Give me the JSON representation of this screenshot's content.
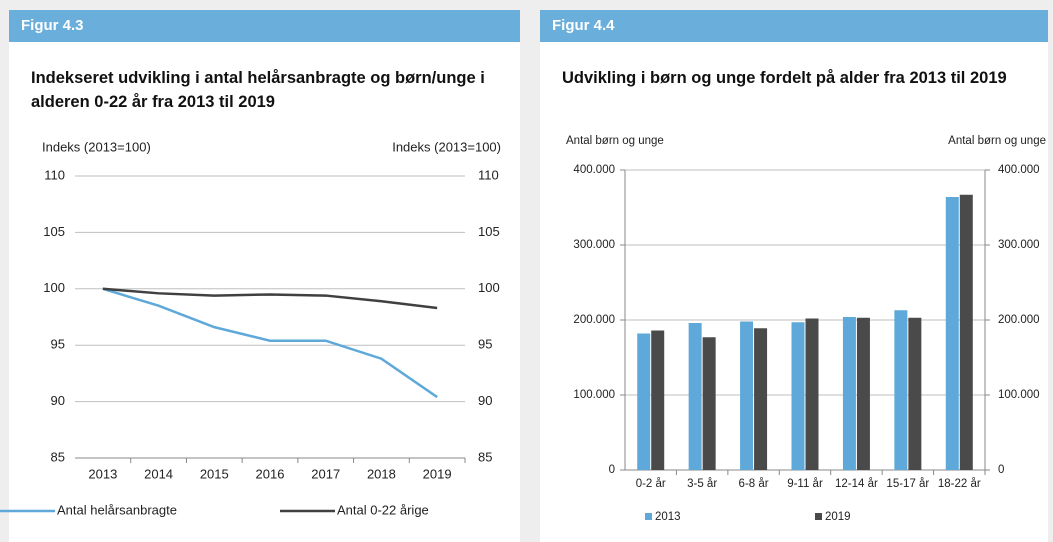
{
  "chart_data": [
    {
      "type": "line",
      "figure_label": "Figur 4.3",
      "title": "Indekseret udvikling i antal helårsanbragte og børn/unge i alderen 0-22 år fra 2013 til 2019",
      "ylabel": "Indeks (2013=100)",
      "y2label": "Indeks (2013=100)",
      "categories": [
        "2013",
        "2014",
        "2015",
        "2016",
        "2017",
        "2018",
        "2019"
      ],
      "series": [
        {
          "name": "Antal helårsanbragte",
          "color": "#5ea9da",
          "values": [
            100,
            98.5,
            96.6,
            95.4,
            95.4,
            93.8,
            90.4
          ]
        },
        {
          "name": "Antal 0-22 årige",
          "color": "#404040",
          "values": [
            100,
            99.6,
            99.4,
            99.5,
            99.4,
            98.9,
            98.3
          ]
        }
      ],
      "ylim": [
        85,
        110
      ],
      "yticks": [
        85,
        90,
        95,
        100,
        105,
        110
      ],
      "y2lim": [
        85,
        110
      ],
      "y2ticks": [
        85,
        90,
        95,
        100,
        105,
        110
      ],
      "grid": true,
      "legend": "bottom"
    },
    {
      "type": "bar",
      "figure_label": "Figur 4.4",
      "title": "Udvikling i børn og unge fordelt på alder fra 2013 til 2019",
      "ylabel": "Antal børn og unge",
      "y2label": "Antal børn og unge",
      "categories": [
        "0-2 år",
        "3-5 år",
        "6-8 år",
        "9-11 år",
        "12-14 år",
        "15-17 år",
        "18-22 år"
      ],
      "series": [
        {
          "name": "2013",
          "color": "#5ea9da",
          "values": [
            182000,
            196000,
            198000,
            197000,
            204000,
            213000,
            364000
          ]
        },
        {
          "name": "2019",
          "color": "#4a4a4a",
          "values": [
            186000,
            177000,
            189000,
            202000,
            203000,
            203000,
            367000
          ]
        }
      ],
      "ylim": [
        0,
        400000
      ],
      "yticks": [
        0,
        {
          "value": 100000,
          "label": "100.000"
        },
        {
          "value": 200000,
          "label": "200.000"
        },
        {
          "value": 300000,
          "label": "300.000"
        },
        {
          "value": 400000,
          "label": "400.000"
        }
      ],
      "y2lim": [
        0,
        400000
      ],
      "y2ticks": [
        0,
        {
          "value": 100000,
          "label": "100.000"
        },
        {
          "value": 200000,
          "label": "200.000"
        },
        {
          "value": 300000,
          "label": "300.000"
        },
        {
          "value": 400000,
          "label": "400.000"
        }
      ],
      "grid": true,
      "legend": "bottom"
    }
  ]
}
